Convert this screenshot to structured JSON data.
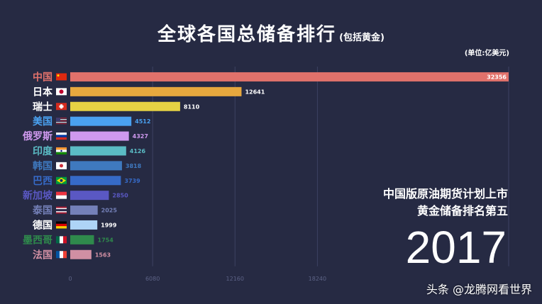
{
  "chart_data": {
    "type": "bar",
    "orientation": "horizontal",
    "title": "全球各国总储备排行",
    "subtitle": "(包括黄金)",
    "unit": "(单位:亿美元)",
    "xlim": [
      0,
      32356
    ],
    "x_ticks": [
      0,
      6080,
      12160,
      18240
    ],
    "grid": true,
    "categories": [
      "中国",
      "日本",
      "瑞士",
      "美国",
      "俄罗斯",
      "印度",
      "韩国",
      "巴西",
      "新加坡",
      "泰国",
      "德国",
      "墨西哥",
      "法国"
    ],
    "values": [
      32356,
      12641,
      8110,
      4512,
      4327,
      4126,
      3818,
      3739,
      2850,
      2025,
      1999,
      1754,
      1563
    ],
    "bar_colors": [
      "#e0716b",
      "#e7a83e",
      "#e6d244",
      "#4aa1f0",
      "#cf99ee",
      "#5bbcc5",
      "#3f79bf",
      "#366ac7",
      "#5a58c3",
      "#7480b8",
      "#aed4f6",
      "#2f8a4c",
      "#d08fa3"
    ],
    "label_colors": [
      "#e0716b",
      "#ffffff",
      "#ffffff",
      "#4aa1f0",
      "#cf99ee",
      "#5bbcc5",
      "#3f79bf",
      "#366ac7",
      "#5a58c3",
      "#7480b8",
      "#ffffff",
      "#2f8a4c",
      "#d08fa3"
    ],
    "flags": [
      "cn",
      "jp",
      "ch",
      "us",
      "ru",
      "in",
      "kr",
      "br",
      "sg",
      "th",
      "de",
      "mx",
      "fr"
    ]
  },
  "annotation": {
    "line1": "中国版原油期货计划上市",
    "line2": "黄金储备排名第五",
    "year": "2017"
  },
  "watermark": "头条 @龙腾网看世界"
}
